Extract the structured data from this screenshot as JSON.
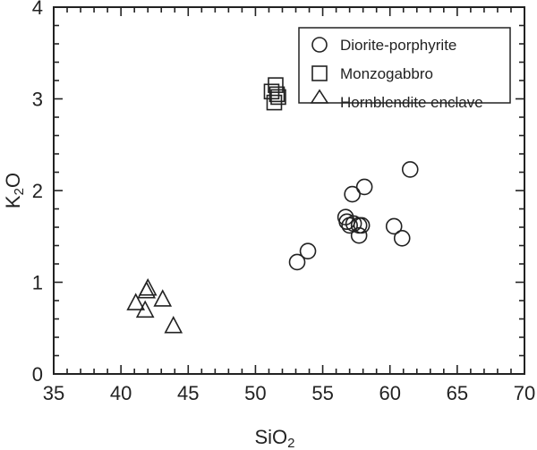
{
  "chart_data": {
    "type": "scatter",
    "title": "",
    "xlabel": "SiO2",
    "ylabel": "K2O",
    "xlim": [
      35,
      70
    ],
    "ylim": [
      0,
      4
    ],
    "x_ticks": [
      35,
      40,
      45,
      50,
      55,
      60,
      65,
      70
    ],
    "y_ticks": [
      0,
      1,
      2,
      3,
      4
    ],
    "grid": false,
    "legend_position": "upper right",
    "series": [
      {
        "name": "Diorite-porphyrite",
        "marker": "circle",
        "points": [
          [
            61.5,
            2.23
          ],
          [
            58.1,
            2.04
          ],
          [
            57.2,
            1.96
          ],
          [
            60.3,
            1.61
          ],
          [
            60.9,
            1.48
          ],
          [
            53.9,
            1.34
          ],
          [
            53.1,
            1.22
          ],
          [
            56.7,
            1.71
          ],
          [
            56.8,
            1.66
          ],
          [
            57.0,
            1.62
          ],
          [
            57.3,
            1.64
          ],
          [
            57.7,
            1.62
          ],
          [
            57.9,
            1.62
          ],
          [
            57.7,
            1.51
          ]
        ]
      },
      {
        "name": "Monzogabbro",
        "marker": "square",
        "points": [
          [
            51.5,
            3.15
          ],
          [
            51.2,
            3.08
          ],
          [
            51.7,
            3.02
          ],
          [
            51.4,
            2.96
          ],
          [
            51.6,
            3.05
          ]
        ]
      },
      {
        "name": "Hornblendite enclave",
        "marker": "triangle",
        "points": [
          [
            42.0,
            0.93
          ],
          [
            41.9,
            0.9
          ],
          [
            41.1,
            0.77
          ],
          [
            41.8,
            0.69
          ],
          [
            43.1,
            0.81
          ],
          [
            43.9,
            0.52
          ]
        ]
      }
    ]
  },
  "labels": {
    "xlabel_main": "SiO",
    "xlabel_sub": "2",
    "ylabel_main_k": "K",
    "ylabel_sub": "2",
    "ylabel_main_o": "O"
  },
  "legend": {
    "items": [
      "Diorite-porphyrite",
      "Monzogabbro",
      "Hornblendite enclave"
    ]
  }
}
